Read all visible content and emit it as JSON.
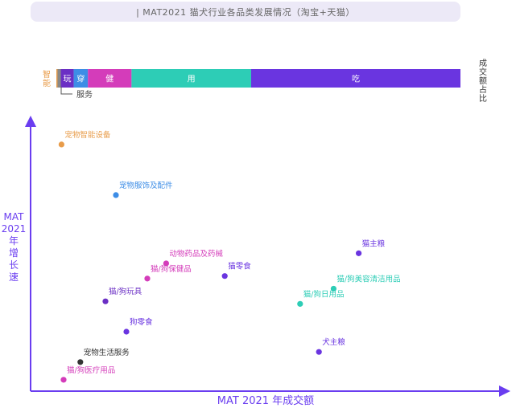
{
  "title": "| MAT2021 猫犬行业各品类发展情况（淘宝+天猫）",
  "share_bar": {
    "label": "成交额占比",
    "segments": [
      {
        "label": "智能",
        "share": 0.3,
        "color": "#e89c4a",
        "label_outside": true
      },
      {
        "label": "",
        "share": 0.8,
        "color": "#888888"
      },
      {
        "label": "玩",
        "share": 3.2,
        "color": "#6b2fc4"
      },
      {
        "label": "穿",
        "share": 3.5,
        "color": "#3d8de6"
      },
      {
        "label": "健",
        "share": 10.8,
        "color": "#d43cba"
      },
      {
        "label": "用",
        "share": 29.6,
        "color": "#2dcdb6"
      },
      {
        "label": "吃",
        "share": 51.8,
        "color": "#6a35e0"
      }
    ],
    "service_label": "服务"
  },
  "chart_data": {
    "type": "scatter",
    "xlabel": "MAT 2021 年成交额",
    "ylabel": "MAT 2021 年增长速",
    "xlim": [
      0,
      100
    ],
    "ylim": [
      0,
      100
    ],
    "points": [
      {
        "label": "宠物智能设备",
        "x": 7,
        "y": 94,
        "color": "#e89c4a"
      },
      {
        "label": "宠物服饰及配件",
        "x": 20,
        "y": 74,
        "color": "#3d8de6"
      },
      {
        "label": "动物药品及药械",
        "x": 32,
        "y": 47,
        "color": "#d43cba"
      },
      {
        "label": "猫/狗保健品",
        "x": 27.5,
        "y": 41,
        "color": "#d43cba"
      },
      {
        "label": "猫/狗玩具",
        "x": 17.5,
        "y": 32,
        "color": "#6b2fc4"
      },
      {
        "label": "狗零食",
        "x": 22.5,
        "y": 20,
        "color": "#6a35e0"
      },
      {
        "label": "猫零食",
        "x": 46,
        "y": 42,
        "color": "#6a35e0"
      },
      {
        "label": "猫主粮",
        "x": 78,
        "y": 51,
        "color": "#6a35e0"
      },
      {
        "label": "猫/狗美容清洁用品",
        "x": 72,
        "y": 37,
        "color": "#2dcdb6"
      },
      {
        "label": "猫/狗日用品",
        "x": 64,
        "y": 31,
        "color": "#2dcdb6"
      },
      {
        "label": "犬主粮",
        "x": 68.5,
        "y": 12,
        "color": "#6a35e0"
      },
      {
        "label": "宠物生活服务",
        "x": 11.5,
        "y": 8,
        "color": "#333333"
      },
      {
        "label": "猫/狗医疗用品",
        "x": 7.5,
        "y": 1,
        "color": "#d43cba"
      }
    ]
  },
  "colors": {
    "axis": "#6a3df0"
  }
}
